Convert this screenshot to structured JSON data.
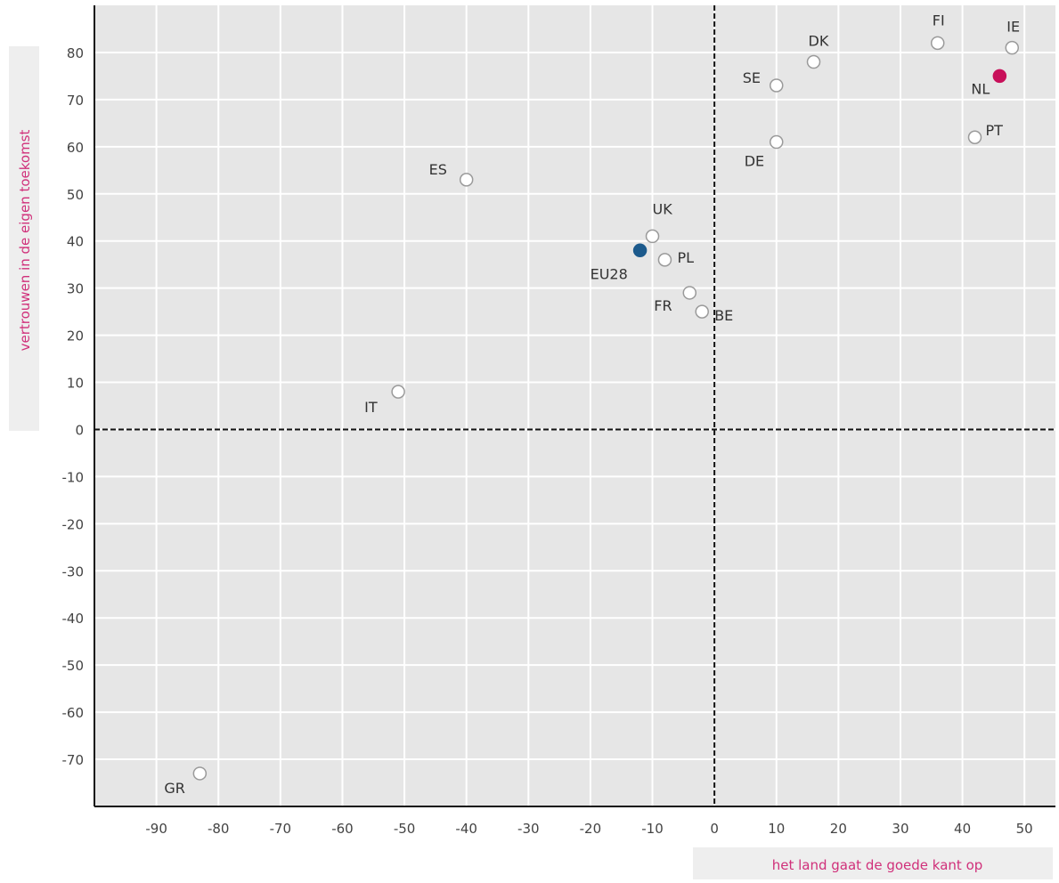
{
  "chart_data": {
    "type": "scatter",
    "xlabel": "het land gaat de goede kant op",
    "ylabel": "vertrouwen in de eigen toekomst",
    "xlim": [
      -100,
      55
    ],
    "ylim": [
      -80,
      90
    ],
    "xticks": [
      -90,
      -80,
      -70,
      -60,
      -50,
      -40,
      -30,
      -20,
      -10,
      0,
      10,
      20,
      30,
      40,
      50
    ],
    "yticks": [
      80,
      70,
      60,
      50,
      40,
      30,
      20,
      10,
      0,
      -10,
      -20,
      -30,
      -40,
      -50,
      -60,
      -70
    ],
    "grid": true,
    "reference_lines": {
      "x": 0,
      "y": 0
    },
    "points": [
      {
        "label": "FI",
        "x": 36,
        "y": 82,
        "color": "#ffffff"
      },
      {
        "label": "IE",
        "x": 48,
        "y": 81,
        "color": "#ffffff"
      },
      {
        "label": "NL",
        "x": 46,
        "y": 75,
        "color": "#c8105a"
      },
      {
        "label": "PT",
        "x": 42,
        "y": 62,
        "color": "#ffffff"
      },
      {
        "label": "DK",
        "x": 16,
        "y": 78,
        "color": "#ffffff"
      },
      {
        "label": "SE",
        "x": 10,
        "y": 73,
        "color": "#ffffff"
      },
      {
        "label": "DE",
        "x": 10,
        "y": 61,
        "color": "#ffffff"
      },
      {
        "label": "ES",
        "x": -40,
        "y": 53,
        "color": "#ffffff"
      },
      {
        "label": "UK",
        "x": -10,
        "y": 41,
        "color": "#ffffff"
      },
      {
        "label": "EU28",
        "x": -12,
        "y": 38,
        "color": "#1c5a8c"
      },
      {
        "label": "PL",
        "x": -8,
        "y": 36,
        "color": "#ffffff"
      },
      {
        "label": "FR",
        "x": -4,
        "y": 29,
        "color": "#ffffff"
      },
      {
        "label": "BE",
        "x": -2,
        "y": 25,
        "color": "#ffffff"
      },
      {
        "label": "IT",
        "x": -51,
        "y": 8,
        "color": "#ffffff"
      },
      {
        "label": "GR",
        "x": -83,
        "y": -73,
        "color": "#ffffff"
      }
    ]
  },
  "colors": {
    "plot_background": "#e6e6e6",
    "grid": "#ffffff",
    "marker_stroke": "#9a9a9a",
    "axis_title": "#d0307a",
    "axis_title_band": "#eeeeee"
  }
}
